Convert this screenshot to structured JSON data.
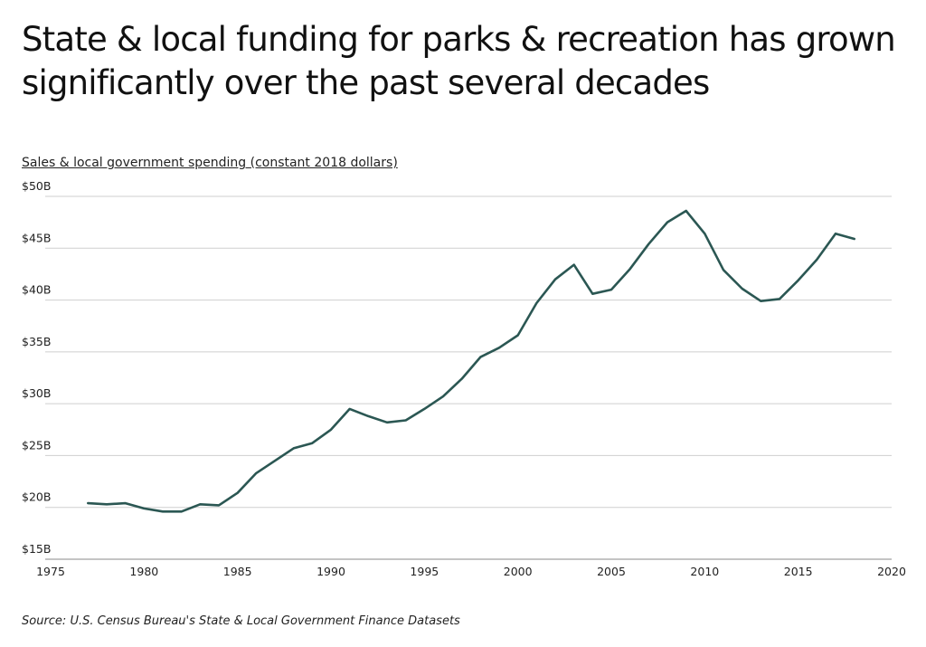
{
  "title": "State & local funding for parks & recreation has grown significantly over the past several decades",
  "source": "Source:  U.S. Census Bureau's State & Local Government Finance Datasets",
  "chart_data": {
    "type": "line",
    "title": "State & local funding for parks & recreation has grown significantly over the past several decades",
    "ylabel": "Sales & local government spending (constant 2018 dollars)",
    "xlabel": "",
    "xlim": [
      1975,
      2020
    ],
    "ylim": [
      15,
      50
    ],
    "x_ticks": [
      "1975",
      "1980",
      "1985",
      "1990",
      "1995",
      "2000",
      "2005",
      "2010",
      "2015",
      "2020"
    ],
    "y_ticks": [
      "$15B",
      "$20B",
      "$25B",
      "$30B",
      "$35B",
      "$40B",
      "$45B",
      "$50B"
    ],
    "grid": "horizontal",
    "line_color": "#2b5753",
    "x": [
      1977,
      1978,
      1979,
      1980,
      1981,
      1982,
      1983,
      1984,
      1985,
      1986,
      1987,
      1988,
      1989,
      1990,
      1991,
      1992,
      1993,
      1994,
      1995,
      1996,
      1997,
      1998,
      1999,
      2000,
      2001,
      2002,
      2003,
      2004,
      2005,
      2006,
      2007,
      2008,
      2009,
      2010,
      2011,
      2012,
      2013,
      2014,
      2015,
      2016,
      2017,
      2018
    ],
    "values": [
      20.4,
      20.3,
      20.4,
      19.9,
      19.6,
      19.6,
      20.3,
      20.2,
      21.4,
      23.3,
      24.5,
      25.7,
      26.2,
      27.5,
      29.5,
      28.8,
      28.2,
      28.4,
      29.5,
      30.7,
      32.4,
      34.5,
      35.4,
      36.6,
      39.7,
      42.0,
      43.4,
      40.6,
      41.0,
      43.0,
      45.4,
      47.5,
      48.6,
      46.4,
      42.9,
      41.1,
      39.9,
      40.1,
      41.9,
      43.9,
      46.4,
      45.9
    ]
  }
}
